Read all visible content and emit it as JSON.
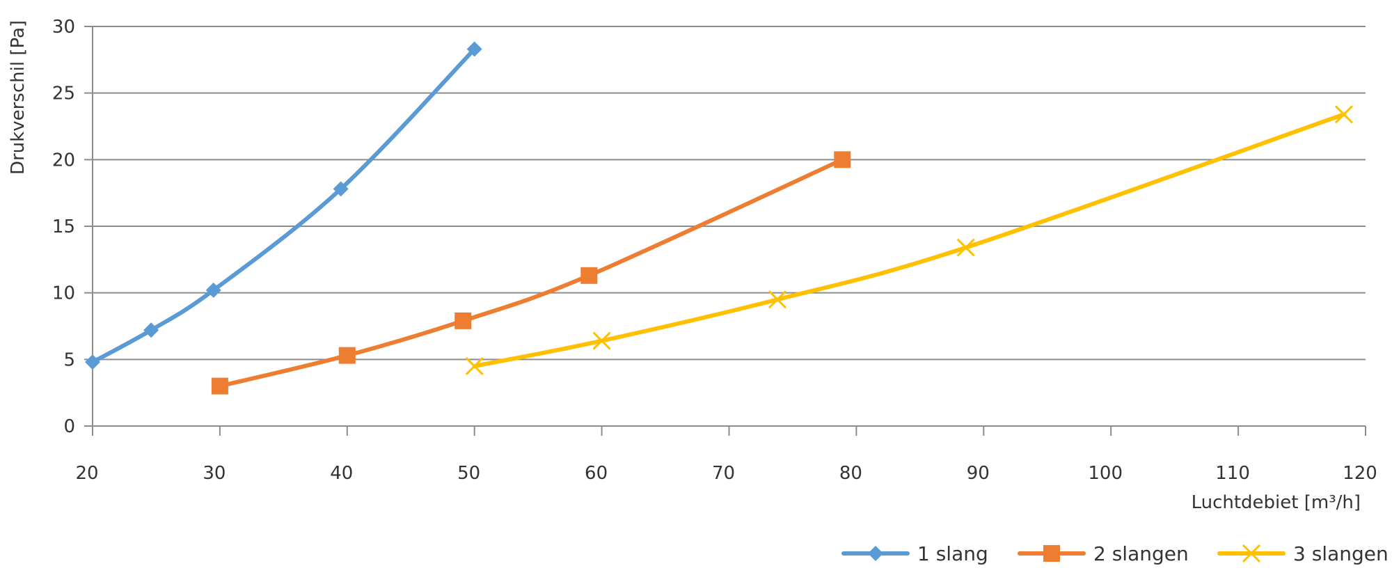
{
  "chart_data": {
    "type": "line",
    "title": "",
    "xlabel": "Luchtdebiet [m³/h]",
    "ylabel": "Drukverschil [Pa]",
    "xlim": [
      20,
      120
    ],
    "ylim": [
      0,
      30
    ],
    "xticks": [
      20,
      30,
      40,
      50,
      60,
      70,
      80,
      90,
      100,
      110,
      120
    ],
    "yticks": [
      0,
      5,
      10,
      15,
      20,
      25,
      30
    ],
    "grid": true,
    "legend_position": "bottom-right",
    "series": [
      {
        "name": "1 slang",
        "color": "#5b9bd5",
        "marker": "diamond",
        "x": [
          20,
          24.6,
          29.5,
          39.5,
          50
        ],
        "y": [
          4.8,
          7.2,
          10.2,
          17.8,
          28.3
        ]
      },
      {
        "name": "2 slangen",
        "color": "#ed7d31",
        "marker": "square",
        "x": [
          30,
          40,
          49.1,
          59,
          78.9
        ],
        "y": [
          3.0,
          5.3,
          7.9,
          11.3,
          20.0
        ]
      },
      {
        "name": "3 slangen",
        "color": "#ffc000",
        "marker": "x",
        "x": [
          50,
          60,
          73.8,
          88.6,
          118.3
        ],
        "y": [
          4.5,
          6.4,
          9.5,
          13.4,
          23.4
        ]
      }
    ]
  }
}
